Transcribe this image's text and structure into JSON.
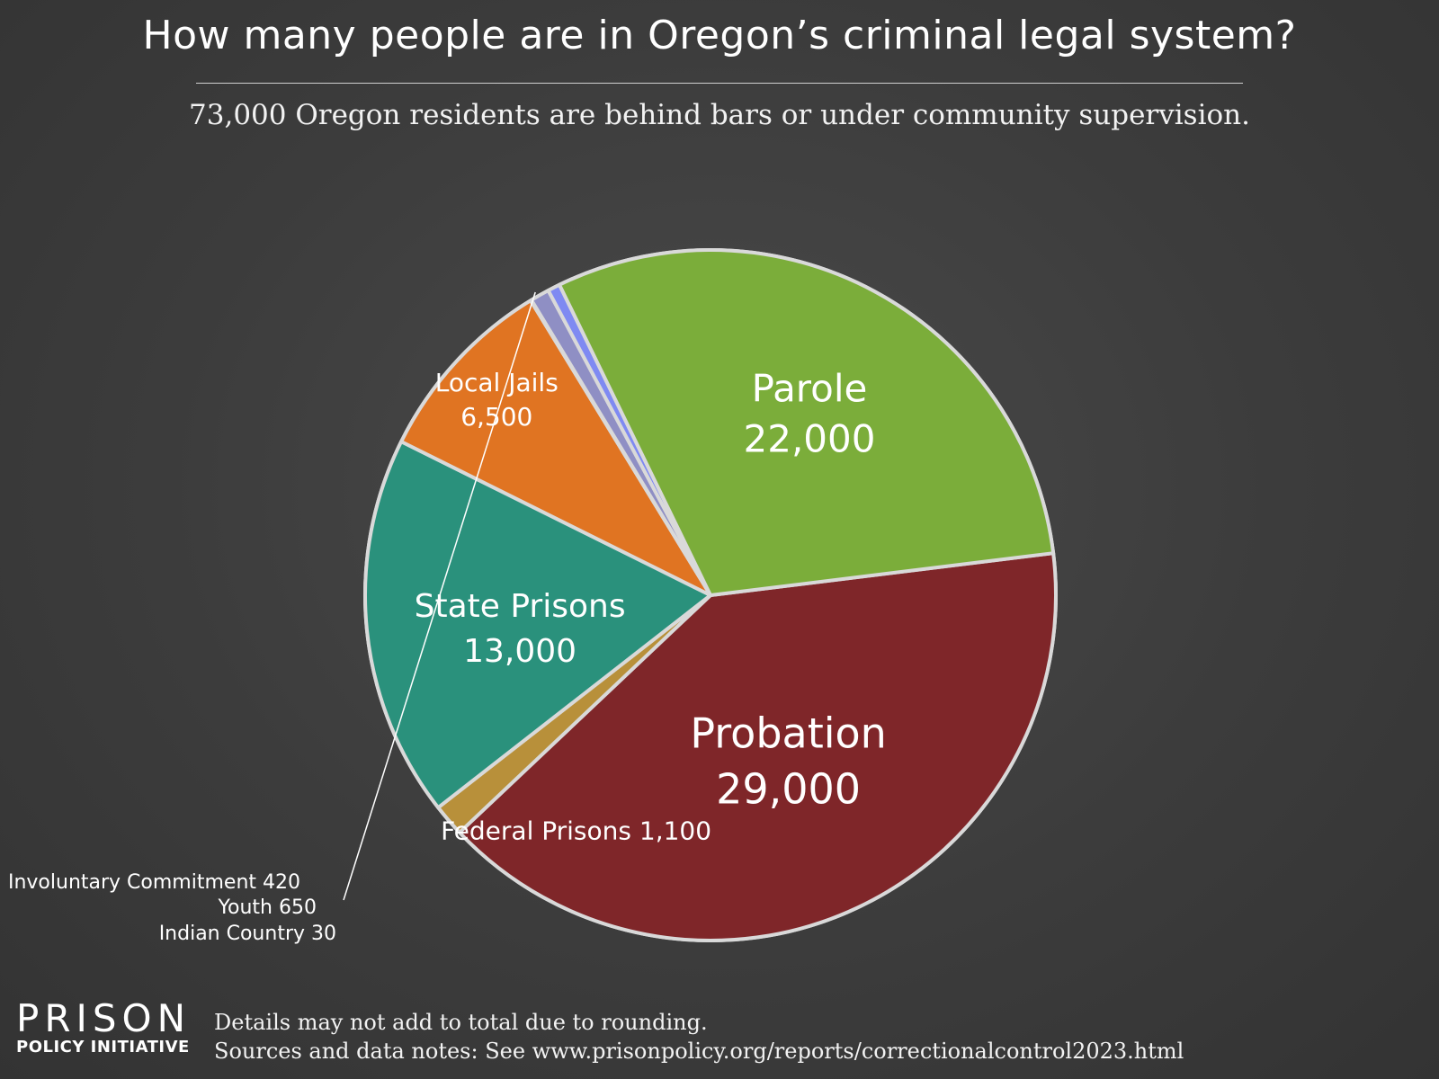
{
  "title": "How many people are in Oregon’s criminal legal system?",
  "subtitle": "73,000 Oregon residents are behind bars or under community supervision.",
  "footer": {
    "note": "Details may not add to total due to rounding.",
    "sources": "Sources and data notes: See www.prisonpolicy.org/reports/correctionalcontrol2023.html"
  },
  "logo": {
    "main": "PRISON",
    "sub": "POLICY INITIATIVE"
  },
  "chart_data": {
    "type": "pie",
    "title": "How many people are in Oregon’s criminal legal system?",
    "subtitle": "73,000 Oregon residents are behind bars or under community supervision.",
    "total": 73000,
    "slices": [
      {
        "name": "Probation",
        "value": 29000,
        "label": "29,000",
        "color": "#7f2629"
      },
      {
        "name": "Federal Prisons",
        "value": 1100,
        "label": "1,100",
        "color": "#b8903a"
      },
      {
        "name": "State Prisons",
        "value": 13000,
        "label": "13,000",
        "color": "#2a917c"
      },
      {
        "name": "Local Jails",
        "value": 6500,
        "label": "6,500",
        "color": "#e07422"
      },
      {
        "name": "Indian Country",
        "value": 30,
        "label": "30",
        "color": "#9a9ae0"
      },
      {
        "name": "Youth",
        "value": 650,
        "label": "650",
        "color": "#8f8fc4"
      },
      {
        "name": "Involuntary Commitment",
        "value": 420,
        "label": "420",
        "color": "#7f8af2"
      },
      {
        "name": "Parole",
        "value": 22000,
        "label": "22,000",
        "color": "#7bad3a"
      }
    ],
    "outline_color": "#d9d9d9",
    "small_labels": [
      "Involuntary Commitment 420",
      "Youth 650",
      "Indian Country 30"
    ]
  }
}
